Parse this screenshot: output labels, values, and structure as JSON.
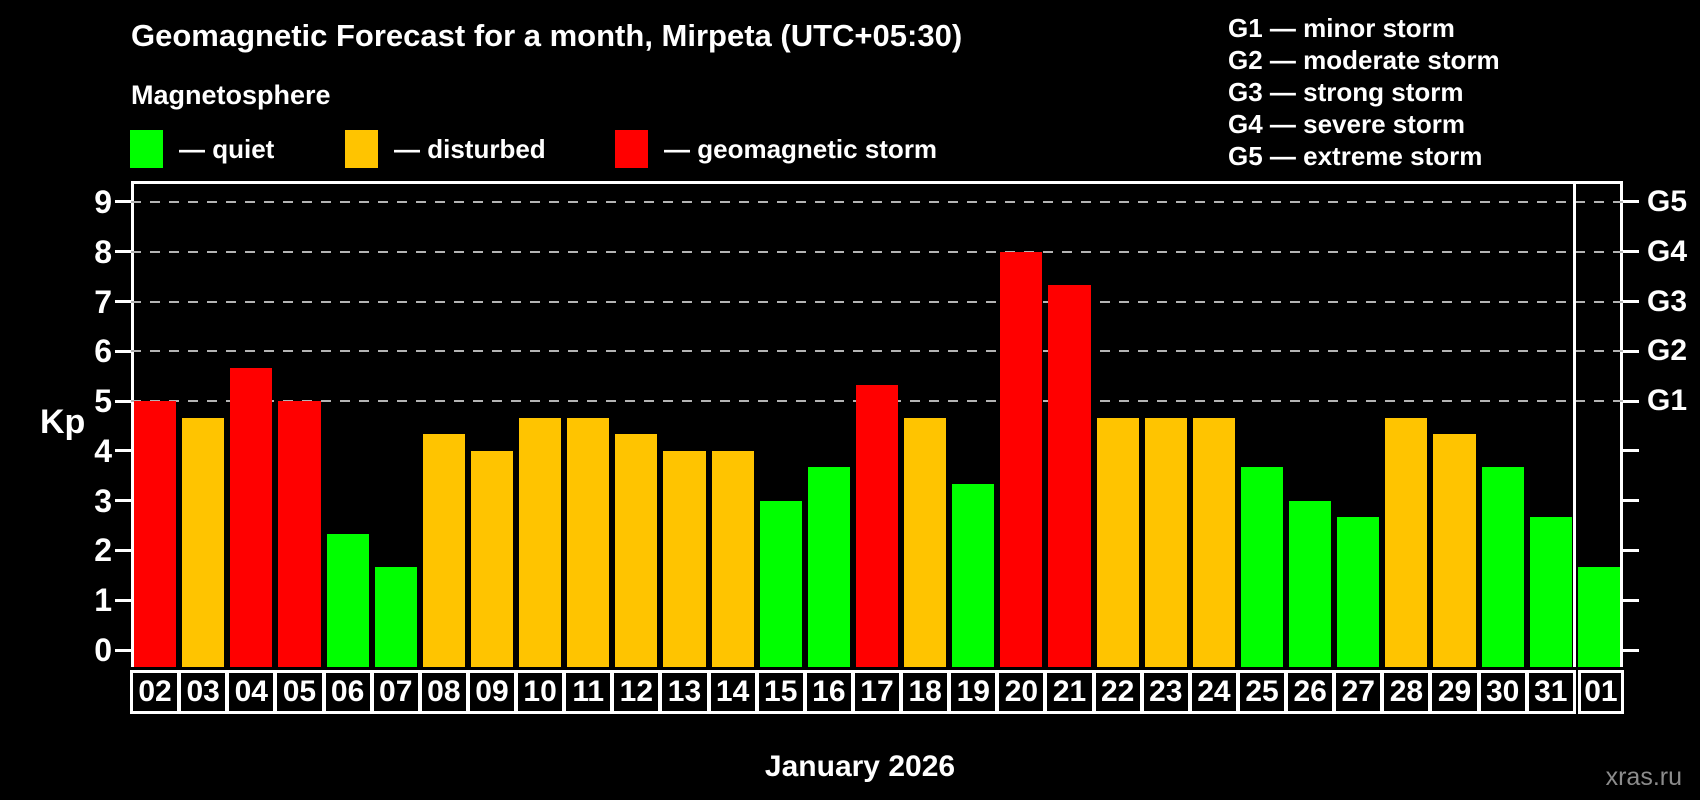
{
  "header": {
    "title": "Geomagnetic Forecast for a month, Mirpeta (UTC+05:30)",
    "subtitle": "Magnetosphere"
  },
  "legend": [
    {
      "label": "— quiet",
      "state": "quiet",
      "color": "#00ff00",
      "x": 0
    },
    {
      "label": "— disturbed",
      "state": "disturbed",
      "color": "#ffc400",
      "x": 215
    },
    {
      "label": "— geomagnetic storm",
      "state": "storm",
      "color": "#ff0000",
      "x": 485
    }
  ],
  "g_legend": [
    "G1 — minor storm",
    "G2 — moderate storm",
    "G3 — strong storm",
    "G4 — severe storm",
    "G5 — extreme storm"
  ],
  "footer": {
    "xlabel": "January 2026",
    "watermark": "xras.ru"
  },
  "chart_data": {
    "type": "bar",
    "title": "Geomagnetic Forecast for a month, Mirpeta (UTC+05:30)",
    "ylabel": "Kp",
    "ylim": [
      0,
      9
    ],
    "y_ticks": [
      0,
      1,
      2,
      3,
      4,
      5,
      6,
      7,
      8,
      9
    ],
    "gridlines_at": [
      5,
      6,
      7,
      8,
      9
    ],
    "right_axis_labels": [
      {
        "kp": 5,
        "label": "G1"
      },
      {
        "kp": 6,
        "label": "G2"
      },
      {
        "kp": 7,
        "label": "G3"
      },
      {
        "kp": 8,
        "label": "G4"
      },
      {
        "kp": 9,
        "label": "G5"
      }
    ],
    "categories": [
      "02",
      "03",
      "04",
      "05",
      "06",
      "07",
      "08",
      "09",
      "10",
      "11",
      "12",
      "13",
      "14",
      "15",
      "16",
      "17",
      "18",
      "19",
      "20",
      "21",
      "22",
      "23",
      "24",
      "25",
      "26",
      "27",
      "28",
      "29",
      "30",
      "31",
      "01"
    ],
    "values": [
      5.0,
      4.67,
      5.67,
      5.0,
      2.33,
      1.67,
      4.33,
      4.0,
      4.67,
      4.67,
      4.33,
      4.0,
      4.0,
      3.0,
      3.67,
      5.33,
      4.67,
      3.33,
      8.0,
      7.33,
      4.67,
      4.67,
      4.67,
      3.67,
      3.0,
      2.67,
      4.67,
      4.33,
      3.67,
      2.67,
      1.67
    ],
    "states": [
      "storm",
      "disturbed",
      "storm",
      "storm",
      "quiet",
      "quiet",
      "disturbed",
      "disturbed",
      "disturbed",
      "disturbed",
      "disturbed",
      "disturbed",
      "disturbed",
      "quiet",
      "quiet",
      "storm",
      "disturbed",
      "quiet",
      "storm",
      "storm",
      "disturbed",
      "disturbed",
      "disturbed",
      "quiet",
      "quiet",
      "quiet",
      "disturbed",
      "disturbed",
      "quiet",
      "quiet",
      "quiet"
    ],
    "colors": {
      "quiet": "#00ff00",
      "disturbed": "#ffc400",
      "storm": "#ff0000"
    },
    "month_separator_after_index": 29,
    "legend_position": "top-left",
    "grid": "dashed horizontal at storm levels only"
  }
}
